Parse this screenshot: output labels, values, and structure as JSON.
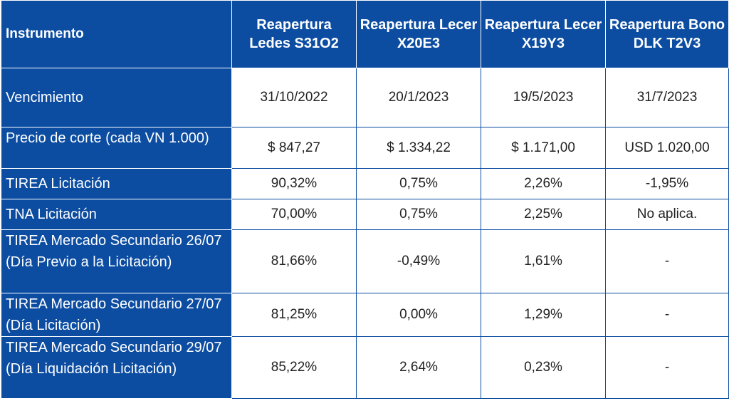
{
  "table": {
    "headers": [
      "Instrumento",
      "Reapertura Ledes S31O2",
      "Reapertura Lecer X20E3",
      "Reapertura Lecer X19Y3",
      "Reapertura Bono DLK T2V3"
    ],
    "rows": [
      {
        "label": "Vencimiento",
        "values": [
          "31/10/2022",
          "20/1/2023",
          "19/5/2023",
          "31/7/2023"
        ]
      },
      {
        "label": "Precio de corte (cada VN 1.000)",
        "values": [
          "$ 847,27",
          "$ 1.334,22",
          "$ 1.171,00",
          "USD 1.020,00"
        ]
      },
      {
        "label": "TIREA Licitación",
        "values": [
          "90,32%",
          "0,75%",
          "2,26%",
          "-1,95%"
        ]
      },
      {
        "label": "TNA Licitación",
        "values": [
          "70,00%",
          "0,75%",
          "2,25%",
          "No aplica."
        ]
      },
      {
        "label": "TIREA Mercado Secundario 26/07 (Día Previo a la Licitación)",
        "values": [
          "81,66%",
          "-0,49%",
          "1,61%",
          "-"
        ]
      },
      {
        "label": "TIREA Mercado Secundario 27/07 (Día Licitación)",
        "values": [
          "81,25%",
          "0,00%",
          "1,29%",
          "-"
        ]
      },
      {
        "label": "TIREA Mercado Secundario 29/07 (Día Liquidación Licitación)",
        "values": [
          "85,22%",
          "2,64%",
          "0,23%",
          "-"
        ]
      }
    ]
  }
}
